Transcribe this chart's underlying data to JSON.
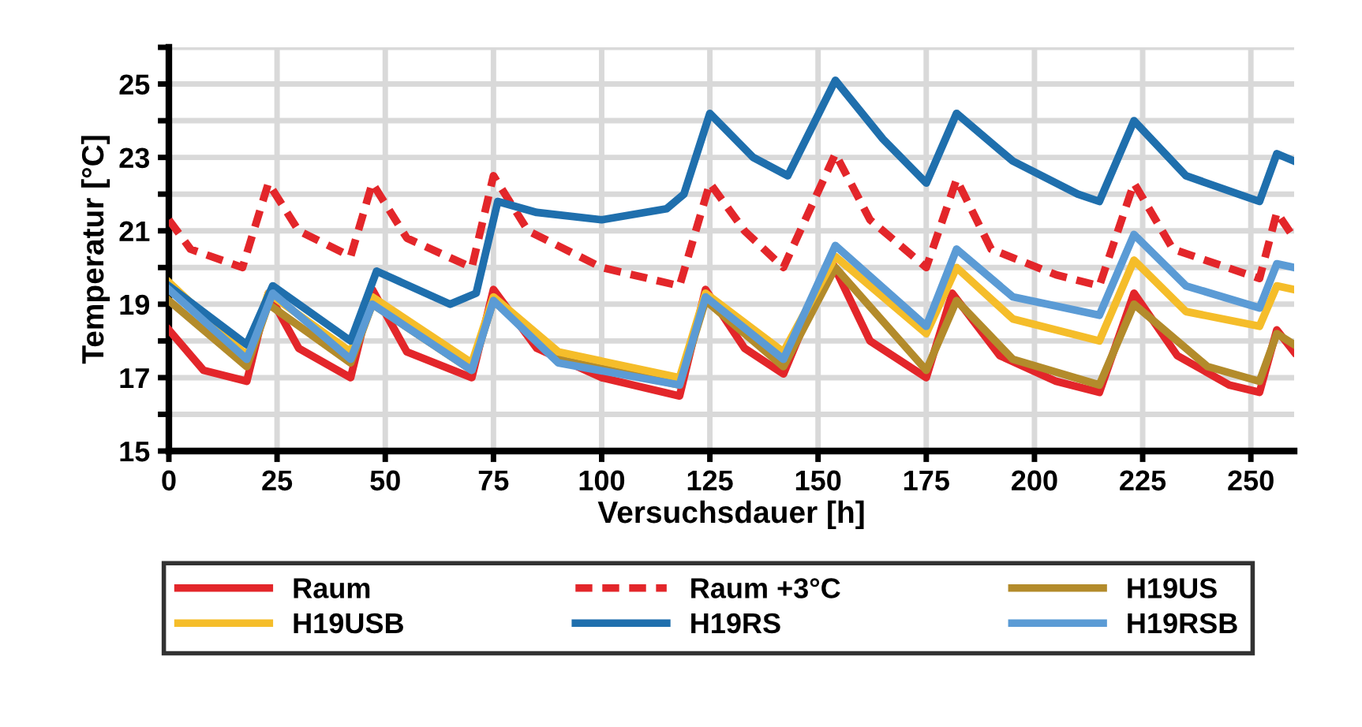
{
  "chart_data": {
    "type": "line",
    "xlabel": "Versuchsdauer [h]",
    "ylabel": "Temperatur [°C]",
    "xlim": [
      0,
      260
    ],
    "xticks": [
      0,
      25,
      50,
      75,
      100,
      125,
      150,
      175,
      200,
      225,
      250
    ],
    "ylim": [
      15,
      26
    ],
    "yticks": [
      15,
      {
        "value": 16,
        "label": null
      },
      17,
      {
        "value": 18,
        "label": null
      },
      19,
      {
        "value": 20,
        "label": null
      },
      21,
      {
        "value": 22,
        "label": null
      },
      23,
      {
        "value": 24,
        "label": null
      },
      25,
      {
        "value": 26,
        "label": null
      }
    ],
    "grid": true,
    "legend": "bottom",
    "marker": "none",
    "series": [
      {
        "name": "Raum",
        "color": "#e3262a",
        "line_style": "solid",
        "x": [
          0,
          8,
          18,
          23,
          30,
          42,
          47,
          55,
          70,
          75,
          85,
          100,
          118,
          124,
          133,
          142,
          153,
          162,
          175,
          181,
          192,
          205,
          215,
          223,
          233,
          245,
          252,
          256,
          260
        ],
        "values": [
          18.3,
          17.2,
          16.9,
          19.3,
          17.8,
          17.0,
          19.4,
          17.7,
          17.0,
          19.4,
          17.8,
          17.0,
          16.5,
          19.4,
          17.8,
          17.1,
          20.2,
          18.0,
          17.0,
          19.3,
          17.6,
          16.9,
          16.6,
          19.3,
          17.6,
          16.8,
          16.6,
          18.3,
          17.7
        ]
      },
      {
        "name": "Raum +3°C",
        "color": "#e3262a",
        "line_style": "dashed",
        "x": [
          0,
          5,
          17,
          23,
          30,
          42,
          47,
          55,
          70,
          75,
          83,
          100,
          118,
          125,
          133,
          142,
          154,
          162,
          175,
          182,
          190,
          205,
          215,
          223,
          232,
          252,
          256,
          260
        ],
        "values": [
          21.3,
          20.5,
          20.0,
          22.3,
          21.0,
          20.3,
          22.3,
          20.8,
          20.0,
          22.5,
          21.0,
          20.0,
          19.5,
          22.3,
          21.0,
          20.0,
          23.1,
          21.3,
          20.0,
          22.4,
          20.5,
          19.8,
          19.5,
          22.3,
          20.5,
          19.7,
          21.5,
          20.8
        ]
      },
      {
        "name": "H19US",
        "color": "#b38b2b",
        "line_style": "solid",
        "x": [
          0,
          18,
          23,
          42,
          47,
          70,
          75,
          90,
          118,
          124,
          142,
          154,
          175,
          182,
          195,
          215,
          223,
          240,
          252,
          256,
          260
        ],
        "values": [
          19.1,
          17.3,
          19.0,
          17.4,
          19.0,
          17.2,
          19.1,
          17.5,
          16.8,
          19.1,
          17.3,
          20.0,
          17.2,
          19.1,
          17.5,
          16.8,
          19.0,
          17.3,
          16.9,
          18.2,
          17.9
        ]
      },
      {
        "name": "H19USB",
        "color": "#f5bd2a",
        "line_style": "solid",
        "x": [
          0,
          18,
          23,
          42,
          47,
          70,
          75,
          90,
          118,
          124,
          142,
          154,
          175,
          182,
          195,
          215,
          223,
          235,
          252,
          256,
          260
        ],
        "values": [
          19.6,
          17.6,
          19.3,
          17.7,
          19.2,
          17.4,
          19.2,
          17.7,
          17.0,
          19.3,
          17.7,
          20.3,
          18.2,
          20.0,
          18.6,
          18.0,
          20.2,
          18.8,
          18.4,
          19.5,
          19.4
        ]
      },
      {
        "name": "H19RS",
        "color": "#1f6fad",
        "line_style": "solid",
        "x": [
          0,
          18,
          24,
          42,
          48,
          65,
          71,
          76,
          85,
          100,
          115,
          119,
          125,
          135,
          143,
          154,
          165,
          175,
          182,
          195,
          210,
          215,
          223,
          235,
          252,
          256,
          260
        ],
        "values": [
          19.5,
          17.9,
          19.5,
          18.0,
          19.9,
          19.0,
          19.3,
          21.8,
          21.5,
          21.3,
          21.6,
          22.0,
          24.2,
          23.0,
          22.5,
          25.1,
          23.5,
          22.3,
          24.2,
          22.9,
          22.0,
          21.8,
          24.0,
          22.5,
          21.8,
          23.1,
          22.9
        ]
      },
      {
        "name": "H19RSB",
        "color": "#5b9bd5",
        "line_style": "solid",
        "x": [
          0,
          18,
          24,
          42,
          47,
          70,
          75,
          90,
          118,
          124,
          142,
          154,
          175,
          182,
          195,
          215,
          223,
          235,
          252,
          256,
          260
        ],
        "values": [
          19.4,
          17.5,
          19.3,
          17.5,
          19.0,
          17.2,
          19.1,
          17.4,
          16.8,
          19.2,
          17.5,
          20.6,
          18.4,
          20.5,
          19.2,
          18.7,
          20.9,
          19.5,
          18.9,
          20.1,
          20.0
        ]
      }
    ]
  }
}
